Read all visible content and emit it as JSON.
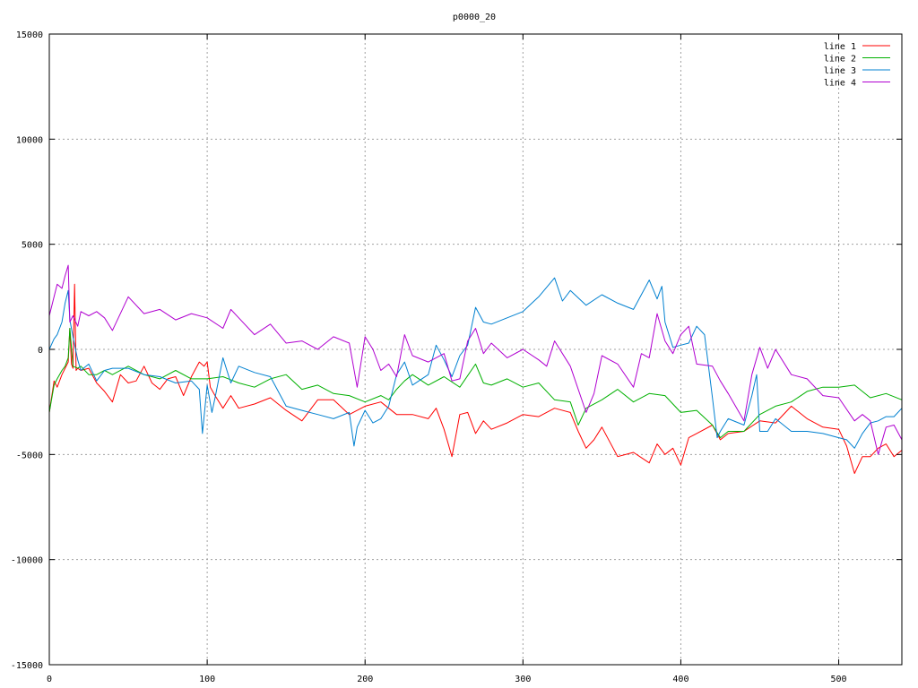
{
  "chart_data": {
    "type": "line",
    "title": "p0000_20",
    "xlabel": "",
    "ylabel": "",
    "xlim": [
      0,
      540
    ],
    "ylim": [
      -15000,
      15000
    ],
    "x_ticks": [
      0,
      100,
      200,
      300,
      400,
      500
    ],
    "y_ticks": [
      -15000,
      -10000,
      -5000,
      0,
      5000,
      10000,
      15000
    ],
    "grid": true,
    "legend_position": "top-right",
    "series": [
      {
        "name": "line 1",
        "color": "#ff0000",
        "x": [
          0,
          3,
          5,
          8,
          10,
          12,
          13,
          14,
          15,
          16,
          17,
          18,
          20,
          25,
          30,
          35,
          40,
          45,
          50,
          55,
          60,
          65,
          70,
          75,
          80,
          85,
          90,
          95,
          98,
          100,
          102,
          105,
          110,
          115,
          120,
          130,
          140,
          150,
          160,
          170,
          180,
          190,
          200,
          210,
          220,
          230,
          240,
          245,
          250,
          255,
          260,
          265,
          270,
          275,
          280,
          290,
          300,
          310,
          320,
          330,
          335,
          340,
          345,
          350,
          355,
          360,
          370,
          380,
          385,
          390,
          395,
          400,
          405,
          410,
          420,
          425,
          430,
          440,
          450,
          460,
          470,
          480,
          490,
          500,
          505,
          510,
          515,
          520,
          525,
          530,
          535,
          540
        ],
        "y": [
          -3000,
          -1500,
          -1800,
          -1200,
          -900,
          -600,
          1000,
          -700,
          -900,
          3100,
          -1000,
          -900,
          -1000,
          -900,
          -1600,
          -2000,
          -2500,
          -1200,
          -1600,
          -1500,
          -800,
          -1600,
          -1900,
          -1400,
          -1300,
          -2200,
          -1300,
          -600,
          -800,
          -600,
          -1800,
          -2200,
          -2800,
          -2200,
          -2800,
          -2600,
          -2300,
          -2900,
          -3400,
          -2400,
          -2400,
          -3100,
          -2700,
          -2500,
          -3100,
          -3100,
          -3300,
          -2800,
          -3800,
          -5100,
          -3100,
          -3000,
          -4000,
          -3400,
          -3800,
          -3500,
          -3100,
          -3200,
          -2800,
          -3000,
          -3900,
          -4700,
          -4300,
          -3700,
          -4400,
          -5100,
          -4900,
          -5400,
          -4500,
          -5000,
          -4700,
          -5500,
          -4200,
          -4000,
          -3600,
          -4300,
          -4000,
          -3900,
          -3400,
          -3500,
          -2700,
          -3300,
          -3700,
          -3800,
          -4600,
          -5900,
          -5100,
          -5100,
          -4700,
          -4500,
          -5100,
          -4800
        ]
      },
      {
        "name": "line 2",
        "color": "#00b000",
        "x": [
          0,
          3,
          5,
          8,
          10,
          12,
          13,
          15,
          18,
          20,
          25,
          30,
          35,
          40,
          50,
          60,
          70,
          80,
          90,
          100,
          110,
          120,
          130,
          140,
          150,
          160,
          170,
          180,
          190,
          200,
          210,
          215,
          220,
          225,
          230,
          240,
          250,
          260,
          270,
          275,
          280,
          290,
          300,
          310,
          320,
          330,
          335,
          340,
          350,
          360,
          370,
          380,
          390,
          400,
          410,
          420,
          425,
          430,
          440,
          450,
          460,
          470,
          480,
          490,
          500,
          510,
          520,
          530,
          540
        ],
        "y": [
          -3000,
          -1700,
          -1400,
          -1000,
          -800,
          -400,
          1000,
          -800,
          -900,
          -800,
          -1200,
          -1200,
          -1000,
          -1200,
          -800,
          -1200,
          -1400,
          -1000,
          -1400,
          -1400,
          -1300,
          -1600,
          -1800,
          -1400,
          -1200,
          -1900,
          -1700,
          -2100,
          -2200,
          -2500,
          -2200,
          -2400,
          -1900,
          -1500,
          -1200,
          -1700,
          -1300,
          -1800,
          -700,
          -1600,
          -1700,
          -1400,
          -1800,
          -1600,
          -2400,
          -2500,
          -3600,
          -2800,
          -2400,
          -1900,
          -2500,
          -2100,
          -2200,
          -3000,
          -2900,
          -3600,
          -4200,
          -3900,
          -3900,
          -3100,
          -2700,
          -2500,
          -2000,
          -1800,
          -1800,
          -1700,
          -2300,
          -2100,
          -2400
        ]
      },
      {
        "name": "line 3",
        "color": "#0080d0",
        "x": [
          0,
          3,
          5,
          8,
          10,
          12,
          13,
          15,
          18,
          20,
          25,
          30,
          35,
          40,
          50,
          60,
          70,
          80,
          90,
          95,
          97,
          100,
          103,
          105,
          110,
          115,
          120,
          130,
          140,
          150,
          160,
          170,
          180,
          190,
          193,
          195,
          200,
          205,
          210,
          215,
          220,
          225,
          230,
          240,
          245,
          250,
          255,
          260,
          265,
          270,
          275,
          280,
          290,
          300,
          310,
          320,
          325,
          330,
          340,
          350,
          360,
          370,
          380,
          385,
          388,
          390,
          395,
          400,
          405,
          410,
          415,
          420,
          423,
          425,
          430,
          440,
          445,
          448,
          450,
          455,
          460,
          470,
          480,
          490,
          500,
          505,
          510,
          515,
          520,
          525,
          530,
          535,
          540
        ],
        "y": [
          0,
          500,
          700,
          1300,
          2200,
          2800,
          1400,
          600,
          -500,
          -1000,
          -700,
          -1500,
          -1000,
          -900,
          -900,
          -1200,
          -1300,
          -1600,
          -1500,
          -1900,
          -4000,
          -1700,
          -3000,
          -2300,
          -400,
          -1600,
          -800,
          -1100,
          -1300,
          -2700,
          -2900,
          -3100,
          -3300,
          -3000,
          -4600,
          -3700,
          -2900,
          -3500,
          -3300,
          -2700,
          -1200,
          -600,
          -1700,
          -1200,
          200,
          -500,
          -1300,
          -300,
          200,
          2000,
          1300,
          1200,
          1500,
          1800,
          2500,
          3400,
          2300,
          2800,
          2100,
          2600,
          2200,
          1900,
          3300,
          2400,
          3000,
          1300,
          100,
          200,
          300,
          1100,
          700,
          -2300,
          -4200,
          -3900,
          -3300,
          -3600,
          -2200,
          -1200,
          -3900,
          -3900,
          -3300,
          -3900,
          -3900,
          -4000,
          -4200,
          -4300,
          -4700,
          -4000,
          -3500,
          -3400,
          -3200,
          -3200,
          -2800
        ]
      },
      {
        "name": "line 4",
        "color": "#b000d0",
        "x": [
          0,
          3,
          5,
          8,
          10,
          12,
          13,
          15,
          18,
          20,
          25,
          30,
          35,
          40,
          50,
          60,
          70,
          80,
          90,
          100,
          110,
          115,
          120,
          130,
          140,
          150,
          160,
          170,
          180,
          190,
          195,
          200,
          205,
          210,
          215,
          220,
          225,
          230,
          240,
          250,
          255,
          260,
          265,
          270,
          275,
          280,
          290,
          300,
          310,
          315,
          320,
          330,
          340,
          345,
          350,
          360,
          370,
          375,
          380,
          385,
          390,
          395,
          400,
          405,
          410,
          420,
          425,
          430,
          440,
          445,
          450,
          455,
          460,
          470,
          480,
          490,
          500,
          510,
          515,
          520,
          525,
          530,
          535,
          540
        ],
        "y": [
          1600,
          2500,
          3100,
          2900,
          3500,
          4000,
          1300,
          1600,
          1100,
          1800,
          1600,
          1800,
          1500,
          900,
          2500,
          1700,
          1900,
          1400,
          1700,
          1500,
          1000,
          1900,
          1500,
          700,
          1200,
          300,
          400,
          0,
          600,
          300,
          -1800,
          600,
          0,
          -1000,
          -700,
          -1300,
          700,
          -300,
          -600,
          -200,
          -1500,
          -1400,
          400,
          1000,
          -200,
          300,
          -400,
          0,
          -500,
          -800,
          400,
          -800,
          -3000,
          -2100,
          -300,
          -700,
          -1800,
          -200,
          -400,
          1700,
          400,
          -200,
          700,
          1100,
          -700,
          -800,
          -1500,
          -2100,
          -3400,
          -1200,
          100,
          -900,
          0,
          -1200,
          -1400,
          -2200,
          -2300,
          -3400,
          -3100,
          -3400,
          -5000,
          -3700,
          -3600,
          -4300
        ]
      }
    ]
  }
}
